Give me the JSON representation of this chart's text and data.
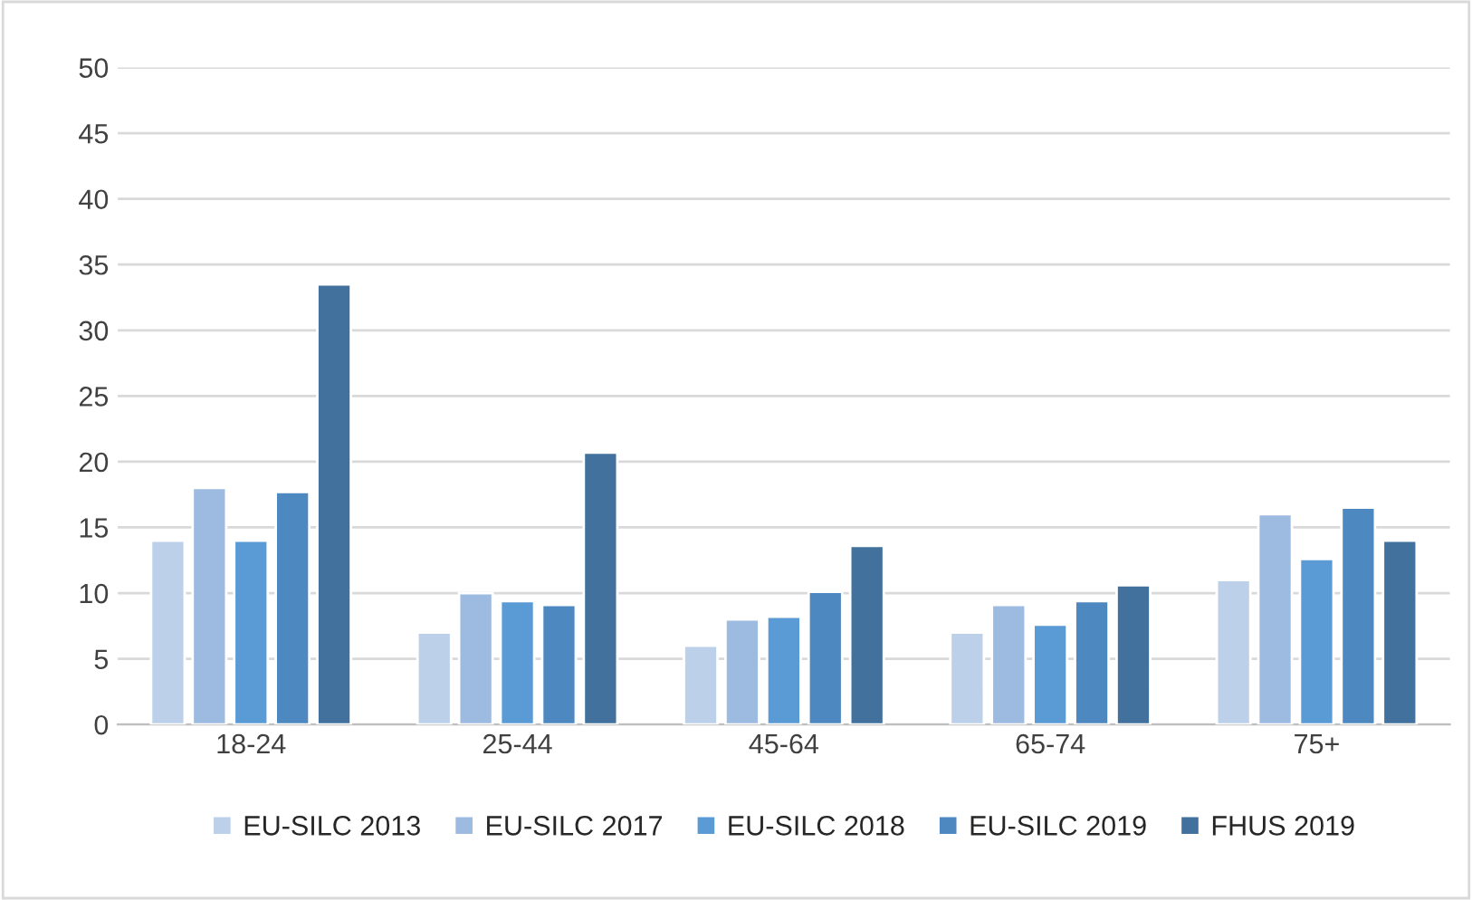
{
  "chart_data": {
    "type": "bar",
    "categories": [
      "18-24",
      "25-44",
      "45-64",
      "65-74",
      "75+"
    ],
    "series": [
      {
        "name": "EU-SILC 2013",
        "color": "#bdd0ea",
        "values": [
          14,
          7,
          6,
          7,
          11
        ]
      },
      {
        "name": "EU-SILC 2017",
        "color": "#9dbae0",
        "values": [
          18,
          10,
          8,
          9.1,
          16
        ]
      },
      {
        "name": "EU-SILC 2018",
        "color": "#5b9bd5",
        "values": [
          14,
          9.4,
          8.2,
          7.6,
          12.6
        ]
      },
      {
        "name": "EU-SILC 2019",
        "color": "#4d88c0",
        "values": [
          17.7,
          9.1,
          10.1,
          9.4,
          16.5
        ]
      },
      {
        "name": "FHUS 2019",
        "color": "#41719c",
        "values": [
          33.5,
          20.7,
          13.6,
          10.6,
          14
        ]
      }
    ],
    "ylim": [
      0,
      50
    ],
    "yticks": [
      0,
      5,
      10,
      15,
      20,
      25,
      30,
      35,
      40,
      45,
      50
    ],
    "grid": "y",
    "legend": "bottom"
  }
}
